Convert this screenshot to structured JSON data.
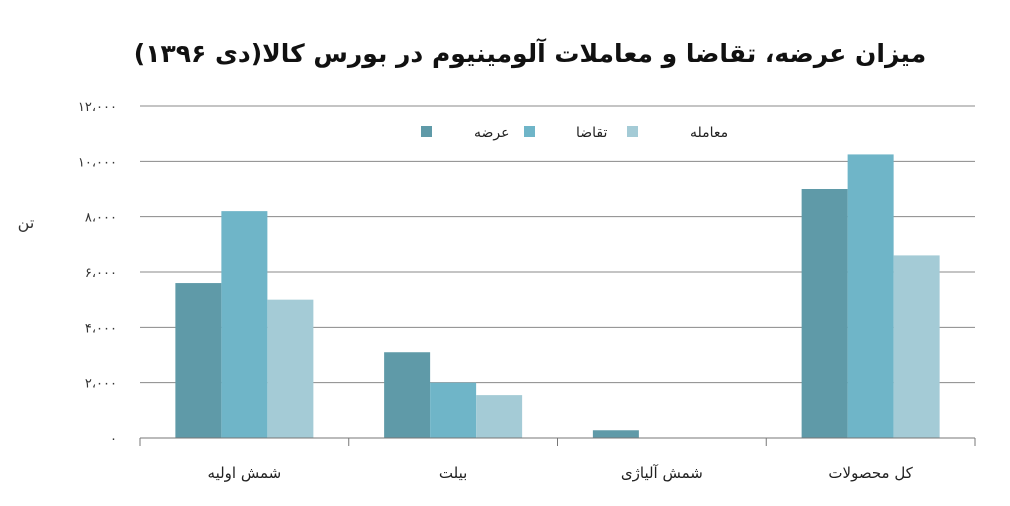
{
  "chart_data": {
    "type": "bar",
    "title": "میزان عرضه، تقاضا و معاملات آلومینیوم در بورس کالا(دی ۱۳۹۶)",
    "ylabel": "تن",
    "ylim": [
      0,
      12000
    ],
    "y_ticks": [
      0,
      2000,
      4000,
      6000,
      8000,
      10000,
      12000
    ],
    "y_tick_labels": [
      "۰",
      "۲،۰۰۰",
      "۴،۰۰۰",
      "۶،۰۰۰",
      "۸،۰۰۰",
      "۱۰،۰۰۰",
      "۱۲،۰۰۰"
    ],
    "grid": true,
    "legend_position": "top",
    "categories": [
      "شمش اولیه",
      "بیلت",
      "شمش آلیاژی",
      "کل محصولات"
    ],
    "series": [
      {
        "name": "عرضه",
        "color": "#5f9aa8",
        "values": [
          5600,
          3100,
          280,
          9000
        ]
      },
      {
        "name": "تقاضا",
        "color": "#6fb5c8",
        "values": [
          8200,
          2000,
          0,
          10250
        ]
      },
      {
        "name": "معامله",
        "color": "#a4cbd6",
        "values": [
          5000,
          1550,
          0,
          6600
        ]
      }
    ]
  }
}
